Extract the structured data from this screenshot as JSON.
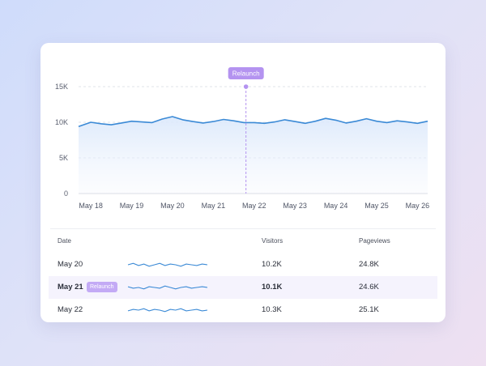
{
  "colors": {
    "line": "#3b8ad6",
    "annotation": "#b493f0",
    "grid": "#dfe3ea"
  },
  "chart_data": {
    "type": "area",
    "ylim": [
      0,
      15000
    ],
    "yticks": [
      0,
      5000,
      10000,
      15000
    ],
    "ytick_labels": [
      "0",
      "5K",
      "10K",
      "15K"
    ],
    "x": [
      17.7,
      18,
      18.25,
      18.5,
      18.75,
      19,
      19.25,
      19.5,
      19.75,
      20,
      20.25,
      20.5,
      20.75,
      21,
      21.25,
      21.5,
      21.75,
      22,
      22.25,
      22.5,
      22.75,
      23,
      23.25,
      23.5,
      23.75,
      24,
      24.25,
      24.5,
      24.75,
      25,
      25.25,
      25.5,
      25.75,
      26,
      26.25
    ],
    "values": [
      9400,
      10000,
      9800,
      9650,
      9900,
      10150,
      10050,
      9950,
      10450,
      10800,
      10350,
      10100,
      9900,
      10100,
      10400,
      10200,
      9950,
      9950,
      9850,
      10050,
      10350,
      10100,
      9850,
      10150,
      10550,
      10300,
      9900,
      10150,
      10500,
      10150,
      9950,
      10200,
      10050,
      9850,
      10150
    ],
    "xmin": 17.7,
    "xmax": 26.25,
    "categories": [
      "May 18",
      "May 19",
      "May 20",
      "May 21",
      "May 22",
      "May 23",
      "May 24",
      "May 25",
      "May 26"
    ],
    "annotation": {
      "label": "Relaunch",
      "x": 21.8
    },
    "grid": true
  },
  "table": {
    "headers": {
      "date": "Date",
      "visitors": "Visitors",
      "pageviews": "Pageviews"
    },
    "rows": [
      {
        "date": "May 20",
        "visitors": "10.2K",
        "pageviews": "24.8K",
        "spark": [
          50,
          52,
          49,
          51,
          48,
          50,
          52,
          49,
          51,
          50,
          48,
          51,
          50,
          49,
          51,
          50
        ]
      },
      {
        "date": "May 21",
        "badge": "Relaunch",
        "visitors": "10.1K",
        "pageviews": "24.6K",
        "spark": [
          51,
          49,
          50,
          48,
          51,
          50,
          49,
          52,
          50,
          48,
          50,
          51,
          49,
          50,
          51,
          50
        ]
      },
      {
        "date": "May 22",
        "visitors": "10.3K",
        "pageviews": "25.1K",
        "spark": [
          49,
          51,
          50,
          52,
          49,
          51,
          50,
          48,
          51,
          50,
          52,
          49,
          50,
          51,
          49,
          50
        ]
      }
    ]
  }
}
